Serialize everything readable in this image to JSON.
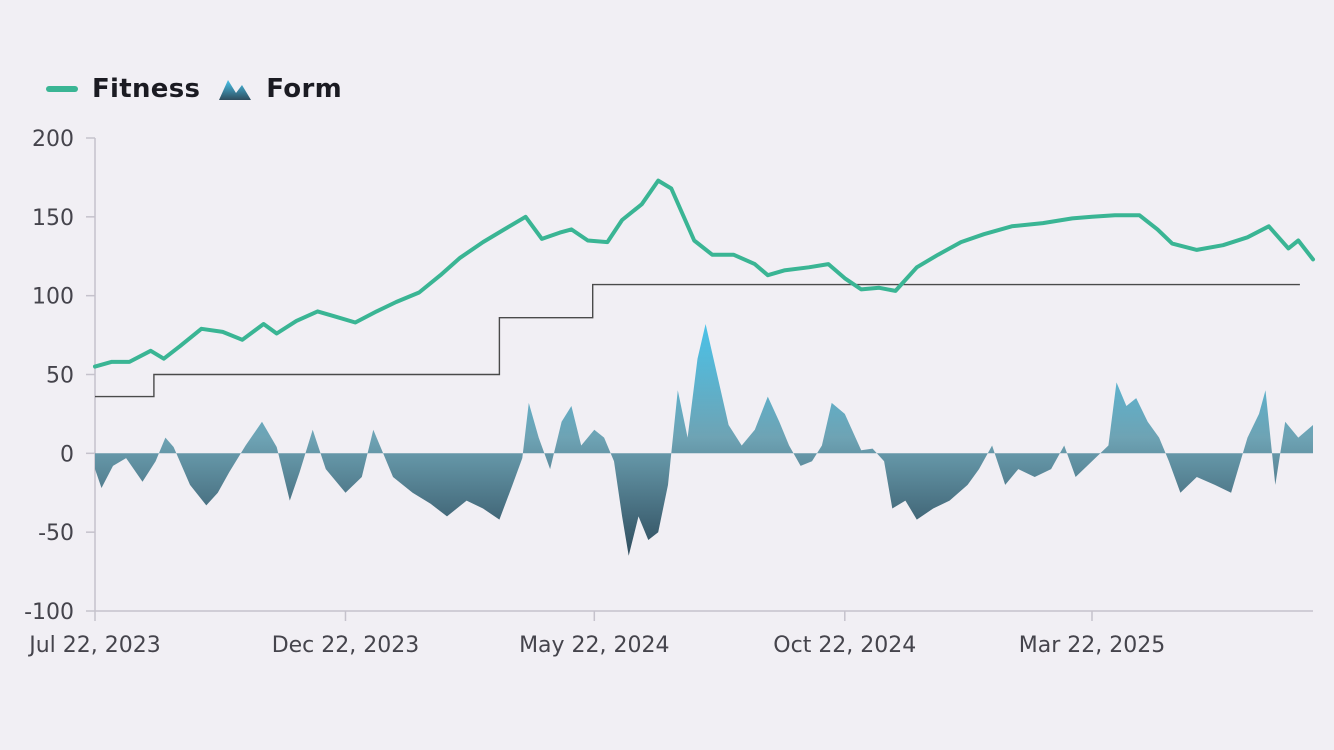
{
  "legend": {
    "fitness_label": "Fitness",
    "form_label": "Form"
  },
  "colors": {
    "background": "#f1eff4",
    "fitness": "#3ab594",
    "form_top": "#48c3ea",
    "form_mid": "#6ea3b4",
    "form_bottom": "#2f4d5e",
    "ftp": "#4a4a4a",
    "axis": "#c5c2cc"
  },
  "chart_data": {
    "type": "line",
    "ylim": [
      -100,
      200
    ],
    "yticks": [
      200,
      150,
      100,
      50,
      0,
      -50,
      -100
    ],
    "x_start": "2023-07-22",
    "x_end": "2025-08-04",
    "xticks": [
      {
        "date": "2023-07-22",
        "label": "Jul 22, 2023"
      },
      {
        "date": "2023-12-22",
        "label": "Dec 22, 2023"
      },
      {
        "date": "2024-05-22",
        "label": "May 22, 2024"
      },
      {
        "date": "2024-10-22",
        "label": "Oct 22, 2024"
      },
      {
        "date": "2025-03-22",
        "label": "Mar 22, 2025"
      }
    ],
    "grid": false,
    "legend_position": "top-left",
    "series": [
      {
        "name": "Fitness",
        "kind": "line",
        "points": [
          [
            "2023-07-22",
            55
          ],
          [
            "2023-08-01",
            58
          ],
          [
            "2023-08-12",
            58
          ],
          [
            "2023-08-25",
            65
          ],
          [
            "2023-09-02",
            60
          ],
          [
            "2023-09-12",
            68
          ],
          [
            "2023-09-25",
            79
          ],
          [
            "2023-10-08",
            77
          ],
          [
            "2023-10-20",
            72
          ],
          [
            "2023-11-02",
            82
          ],
          [
            "2023-11-10",
            76
          ],
          [
            "2023-11-22",
            84
          ],
          [
            "2023-12-05",
            90
          ],
          [
            "2023-12-15",
            87
          ],
          [
            "2023-12-28",
            83
          ],
          [
            "2024-01-10",
            90
          ],
          [
            "2024-01-22",
            96
          ],
          [
            "2024-02-05",
            102
          ],
          [
            "2024-02-18",
            113
          ],
          [
            "2024-03-01",
            124
          ],
          [
            "2024-03-15",
            134
          ],
          [
            "2024-03-28",
            142
          ],
          [
            "2024-04-10",
            150
          ],
          [
            "2024-04-20",
            136
          ],
          [
            "2024-05-01",
            140
          ],
          [
            "2024-05-08",
            142
          ],
          [
            "2024-05-18",
            135
          ],
          [
            "2024-05-30",
            134
          ],
          [
            "2024-06-08",
            148
          ],
          [
            "2024-06-20",
            158
          ],
          [
            "2024-06-30",
            173
          ],
          [
            "2024-07-08",
            168
          ],
          [
            "2024-07-22",
            135
          ],
          [
            "2024-08-02",
            126
          ],
          [
            "2024-08-15",
            126
          ],
          [
            "2024-08-28",
            120
          ],
          [
            "2024-09-05",
            113
          ],
          [
            "2024-09-15",
            116
          ],
          [
            "2024-09-30",
            118
          ],
          [
            "2024-10-12",
            120
          ],
          [
            "2024-10-22",
            111
          ],
          [
            "2024-11-01",
            104
          ],
          [
            "2024-11-12",
            105
          ],
          [
            "2024-11-22",
            103
          ],
          [
            "2024-12-05",
            118
          ],
          [
            "2024-12-18",
            126
          ],
          [
            "2025-01-01",
            134
          ],
          [
            "2025-01-15",
            139
          ],
          [
            "2025-02-01",
            144
          ],
          [
            "2025-02-20",
            146
          ],
          [
            "2025-03-10",
            149
          ],
          [
            "2025-03-22",
            150
          ],
          [
            "2025-04-05",
            151
          ],
          [
            "2025-04-20",
            151
          ],
          [
            "2025-05-01",
            142
          ],
          [
            "2025-05-10",
            133
          ],
          [
            "2025-05-25",
            129
          ],
          [
            "2025-06-10",
            132
          ],
          [
            "2025-06-25",
            137
          ],
          [
            "2025-07-08",
            144
          ],
          [
            "2025-07-20",
            130
          ],
          [
            "2025-07-26",
            135
          ],
          [
            "2025-08-04",
            123
          ]
        ]
      },
      {
        "name": "Form",
        "kind": "area",
        "points": [
          [
            "2023-07-22",
            -10
          ],
          [
            "2023-07-26",
            -22
          ],
          [
            "2023-08-02",
            -8
          ],
          [
            "2023-08-10",
            -3
          ],
          [
            "2023-08-20",
            -18
          ],
          [
            "2023-08-28",
            -5
          ],
          [
            "2023-09-03",
            10
          ],
          [
            "2023-09-08",
            4
          ],
          [
            "2023-09-18",
            -20
          ],
          [
            "2023-09-28",
            -33
          ],
          [
            "2023-10-05",
            -25
          ],
          [
            "2023-10-12",
            -12
          ],
          [
            "2023-10-22",
            5
          ],
          [
            "2023-11-01",
            20
          ],
          [
            "2023-11-10",
            4
          ],
          [
            "2023-11-18",
            -30
          ],
          [
            "2023-11-24",
            -12
          ],
          [
            "2023-12-02",
            15
          ],
          [
            "2023-12-10",
            -10
          ],
          [
            "2023-12-22",
            -25
          ],
          [
            "2024-01-01",
            -15
          ],
          [
            "2024-01-08",
            15
          ],
          [
            "2024-01-12",
            5
          ],
          [
            "2024-01-20",
            -15
          ],
          [
            "2024-02-01",
            -25
          ],
          [
            "2024-02-12",
            -32
          ],
          [
            "2024-02-22",
            -40
          ],
          [
            "2024-03-05",
            -30
          ],
          [
            "2024-03-15",
            -35
          ],
          [
            "2024-03-25",
            -42
          ],
          [
            "2024-04-02",
            -20
          ],
          [
            "2024-04-08",
            -3
          ],
          [
            "2024-04-12",
            32
          ],
          [
            "2024-04-18",
            10
          ],
          [
            "2024-04-25",
            -10
          ],
          [
            "2024-05-02",
            20
          ],
          [
            "2024-05-08",
            30
          ],
          [
            "2024-05-14",
            5
          ],
          [
            "2024-05-22",
            15
          ],
          [
            "2024-05-28",
            10
          ],
          [
            "2024-06-03",
            -5
          ],
          [
            "2024-06-08",
            -40
          ],
          [
            "2024-06-12",
            -65
          ],
          [
            "2024-06-18",
            -40
          ],
          [
            "2024-06-24",
            -55
          ],
          [
            "2024-06-30",
            -50
          ],
          [
            "2024-07-06",
            -20
          ],
          [
            "2024-07-12",
            40
          ],
          [
            "2024-07-18",
            10
          ],
          [
            "2024-07-24",
            60
          ],
          [
            "2024-07-29",
            82
          ],
          [
            "2024-08-05",
            50
          ],
          [
            "2024-08-12",
            18
          ],
          [
            "2024-08-20",
            5
          ],
          [
            "2024-08-28",
            15
          ],
          [
            "2024-09-05",
            36
          ],
          [
            "2024-09-12",
            20
          ],
          [
            "2024-09-18",
            5
          ],
          [
            "2024-09-25",
            -8
          ],
          [
            "2024-10-02",
            -5
          ],
          [
            "2024-10-08",
            5
          ],
          [
            "2024-10-14",
            32
          ],
          [
            "2024-10-22",
            25
          ],
          [
            "2024-11-01",
            2
          ],
          [
            "2024-11-08",
            3
          ],
          [
            "2024-11-15",
            -5
          ],
          [
            "2024-11-20",
            -35
          ],
          [
            "2024-11-28",
            -30
          ],
          [
            "2024-12-05",
            -42
          ],
          [
            "2024-12-15",
            -35
          ],
          [
            "2024-12-25",
            -30
          ],
          [
            "2025-01-05",
            -20
          ],
          [
            "2025-01-12",
            -10
          ],
          [
            "2025-01-20",
            5
          ],
          [
            "2025-01-28",
            -20
          ],
          [
            "2025-02-05",
            -10
          ],
          [
            "2025-02-15",
            -15
          ],
          [
            "2025-02-25",
            -10
          ],
          [
            "2025-03-05",
            5
          ],
          [
            "2025-03-12",
            -15
          ],
          [
            "2025-03-22",
            -5
          ],
          [
            "2025-04-01",
            5
          ],
          [
            "2025-04-06",
            45
          ],
          [
            "2025-04-12",
            30
          ],
          [
            "2025-04-18",
            35
          ],
          [
            "2025-04-25",
            20
          ],
          [
            "2025-05-02",
            10
          ],
          [
            "2025-05-08",
            -5
          ],
          [
            "2025-05-15",
            -25
          ],
          [
            "2025-05-25",
            -15
          ],
          [
            "2025-06-05",
            -20
          ],
          [
            "2025-06-15",
            -25
          ],
          [
            "2025-06-25",
            10
          ],
          [
            "2025-07-02",
            25
          ],
          [
            "2025-07-06",
            40
          ],
          [
            "2025-07-12",
            -20
          ],
          [
            "2025-07-18",
            20
          ],
          [
            "2025-07-26",
            10
          ],
          [
            "2025-08-04",
            18
          ]
        ]
      },
      {
        "name": "",
        "kind": "step",
        "points": [
          [
            "2023-07-22",
            36
          ],
          [
            "2023-08-27",
            50
          ],
          [
            "2024-03-25",
            86
          ],
          [
            "2024-05-21",
            107
          ],
          [
            "2025-07-27",
            107
          ]
        ]
      }
    ]
  }
}
